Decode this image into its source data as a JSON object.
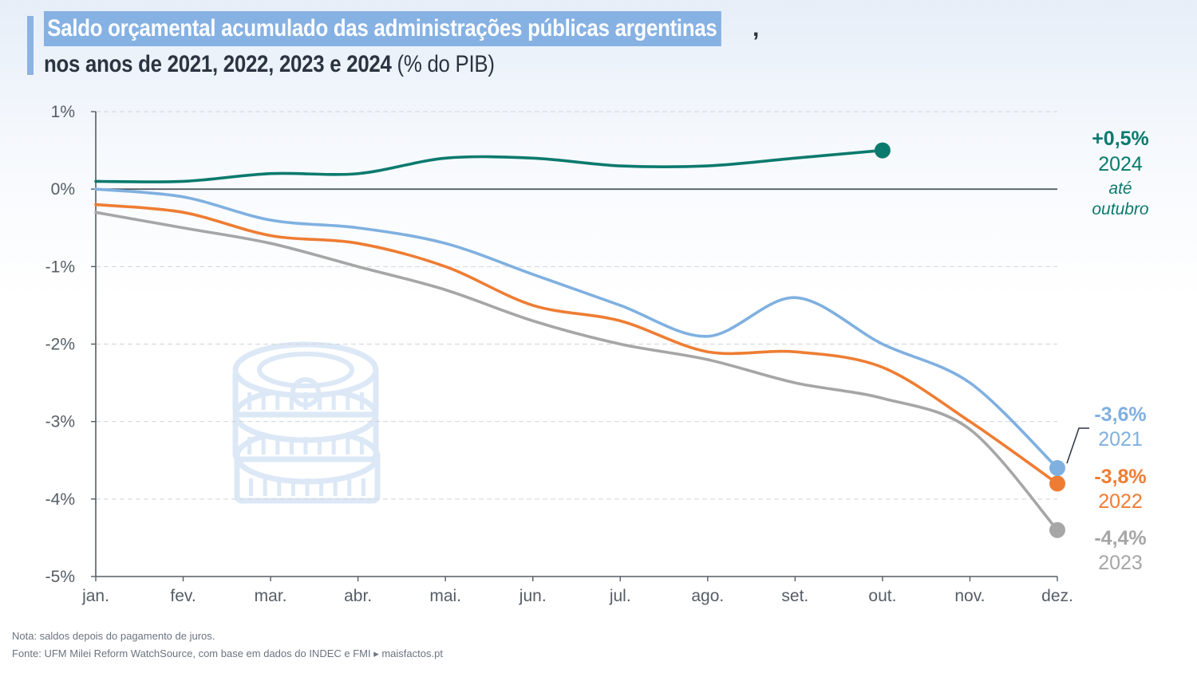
{
  "title": {
    "highlight": "Saldo orçamental acumulado das administrações públicas argentinas",
    "comma": ",",
    "line2_bold": "nos anos de 2021, 2022, 2023 e 2024",
    "line2_unit": "(% do PIB)"
  },
  "chart_data": {
    "type": "line",
    "x": [
      "jan.",
      "fev.",
      "mar.",
      "abr.",
      "mai.",
      "jun.",
      "jul.",
      "ago.",
      "set.",
      "out.",
      "nov.",
      "dez."
    ],
    "ylim": [
      -5,
      1
    ],
    "yticks": [
      1,
      0,
      -1,
      -2,
      -3,
      -4,
      -5
    ],
    "ytick_labels": [
      "1%",
      "0%",
      "-1%",
      "-2%",
      "-3%",
      "-4%",
      "-5%"
    ],
    "grid": true,
    "series": [
      {
        "name": "2024",
        "color": "#0b7a6e",
        "values": [
          0.1,
          0.1,
          0.2,
          0.2,
          0.4,
          0.4,
          0.3,
          0.3,
          0.4,
          0.5,
          null,
          null
        ],
        "end_label": "+0,5%",
        "year_label": "2024",
        "note_line1": "até",
        "note_line2": "outubro"
      },
      {
        "name": "2021",
        "color": "#7fb0e0",
        "values": [
          0.0,
          -0.1,
          -0.4,
          -0.5,
          -0.7,
          -1.1,
          -1.5,
          -1.9,
          -1.4,
          -2.0,
          -2.5,
          -3.6
        ],
        "end_label": "-3,6%",
        "year_label": "2021"
      },
      {
        "name": "2022",
        "color": "#ee7d33",
        "values": [
          -0.2,
          -0.3,
          -0.6,
          -0.7,
          -1.0,
          -1.5,
          -1.7,
          -2.1,
          -2.1,
          -2.3,
          -3.0,
          -3.8
        ],
        "end_label": "-3,8%",
        "year_label": "2022"
      },
      {
        "name": "2023",
        "color": "#a6a6a6",
        "values": [
          -0.3,
          -0.5,
          -0.7,
          -1.0,
          -1.3,
          -1.7,
          -2.0,
          -2.2,
          -2.5,
          -2.7,
          -3.1,
          -4.4
        ],
        "end_label": "-4,4%",
        "year_label": "2023"
      }
    ]
  },
  "decor": {
    "icon": "coins-icon",
    "color": "#dce8f6"
  },
  "footer": {
    "note": "Nota: saldos depois do pagamento de juros.",
    "source": "Fonte: UFM Milei Reform WatchSource, com base em dados do INDEC e FMI ▸ maisfactos.pt"
  }
}
